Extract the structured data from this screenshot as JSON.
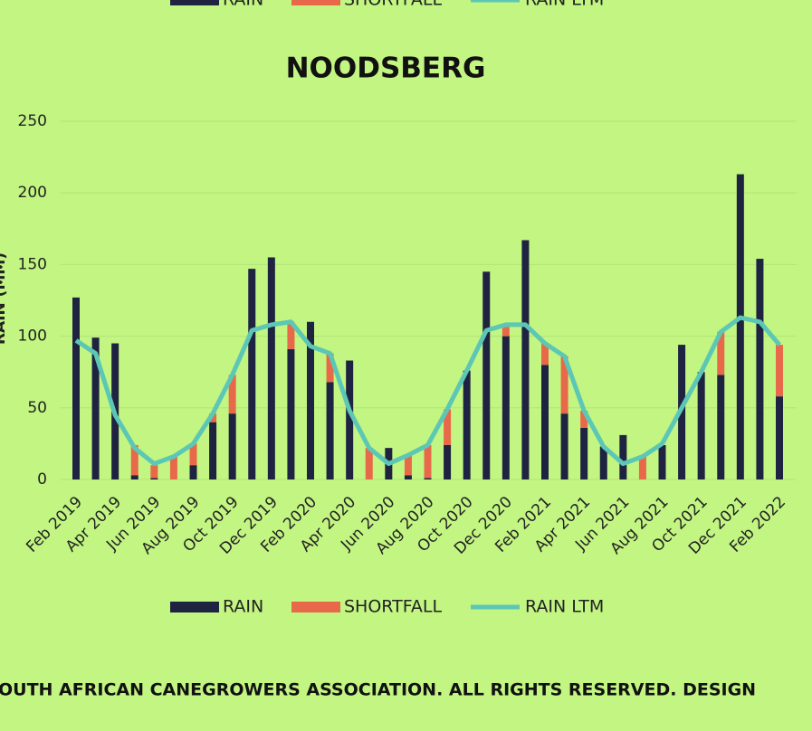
{
  "chart_data": {
    "type": "bar",
    "title": "NOODSBERG",
    "y_label": "RAIN (MM)",
    "footer": "OUTH AFRICAN CANEGROWERS ASSOCIATION. ALL RIGHTS RESERVED. DESIGN",
    "categories": [
      "Feb 2019",
      null,
      "Apr 2019",
      null,
      "Jun 2019",
      null,
      "Aug 2019",
      null,
      "Oct 2019",
      null,
      "Dec 2019",
      null,
      "Feb 2020",
      null,
      "Apr 2020",
      null,
      "Jun 2020",
      null,
      "Aug 2020",
      null,
      "Oct 2020",
      null,
      "Dec 2020",
      null,
      "Feb 2021",
      null,
      "Apr 2021",
      null,
      "Jun 2021",
      null,
      "Aug 2021",
      null,
      "Oct 2021",
      null,
      "Dec 2021",
      null,
      "Feb 2022"
    ],
    "series": [
      {
        "name": "RAIN",
        "color": "#1f2342",
        "kind": "bar",
        "values": [
          127,
          99,
          95,
          3,
          1,
          0,
          10,
          40,
          46,
          147,
          155,
          91,
          110,
          68,
          83,
          0,
          22,
          3,
          1,
          24,
          76,
          145,
          100,
          167,
          80,
          46,
          36,
          23,
          31,
          0,
          24,
          94,
          75,
          73,
          213,
          154,
          58
        ]
      },
      {
        "name": "SHORTFALL",
        "color": "#e8694a",
        "kind": "bar",
        "values": [
          0,
          0,
          0,
          21,
          9,
          16,
          15,
          6,
          27,
          0,
          0,
          19,
          0,
          20,
          0,
          22,
          0,
          14,
          23,
          25,
          0,
          0,
          8,
          0,
          15,
          40,
          12,
          0,
          0,
          16,
          0,
          0,
          0,
          30,
          0,
          0,
          36
        ]
      },
      {
        "name": "RAIN LTM",
        "color": "#5cc7b5",
        "kind": "line",
        "values": [
          97,
          88,
          45,
          22,
          11,
          16,
          25,
          46,
          73,
          104,
          108,
          110,
          93,
          88,
          48,
          22,
          11,
          17,
          24,
          49,
          76,
          104,
          108,
          108,
          95,
          86,
          48,
          23,
          11,
          16,
          25,
          50,
          75,
          103,
          113,
          110,
          94
        ]
      }
    ],
    "ylim": [
      0,
      250
    ],
    "yticks": [
      0,
      50,
      100,
      150,
      200,
      250
    ],
    "grid": true
  }
}
